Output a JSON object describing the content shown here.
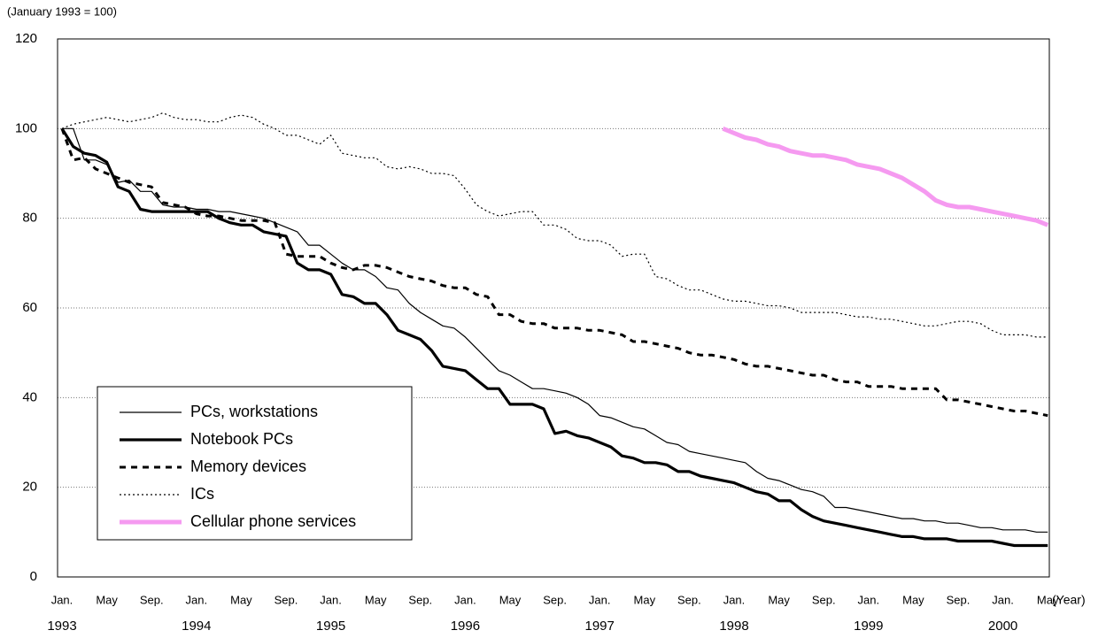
{
  "chart_data": {
    "type": "line",
    "y_axis_label": "(January 1993 = 100)",
    "x_axis_label": "(Year)",
    "categories": [
      "Jan.",
      null,
      null,
      null,
      "May",
      null,
      null,
      null,
      "Sep.",
      null,
      null,
      null,
      "Jan.",
      null,
      null,
      null,
      "May",
      null,
      null,
      null,
      "Sep.",
      null,
      null,
      null,
      "Jan.",
      null,
      null,
      null,
      "May",
      null,
      null,
      null,
      "Sep.",
      null,
      null,
      null,
      "Jan.",
      null,
      null,
      null,
      "May",
      null,
      null,
      null,
      "Sep.",
      null,
      null,
      null,
      "Jan.",
      null,
      null,
      null,
      "May",
      null,
      null,
      null,
      "Sep.",
      null,
      null,
      null,
      "Jan.",
      null,
      null,
      null,
      "May",
      null,
      null,
      null,
      "Sep.",
      null,
      null,
      null,
      "Jan.",
      null,
      null,
      null,
      "May",
      null,
      null,
      null,
      "Sep.",
      null,
      null,
      null,
      "Jan.",
      null,
      null,
      null,
      "May"
    ],
    "category_years": [
      "1993",
      null,
      null,
      null,
      null,
      null,
      null,
      null,
      null,
      null,
      null,
      null,
      "1994",
      null,
      null,
      null,
      null,
      null,
      null,
      null,
      null,
      null,
      null,
      null,
      "1995",
      null,
      null,
      null,
      null,
      null,
      null,
      null,
      null,
      null,
      null,
      null,
      "1996",
      null,
      null,
      null,
      null,
      null,
      null,
      null,
      null,
      null,
      null,
      null,
      "1997",
      null,
      null,
      null,
      null,
      null,
      null,
      null,
      null,
      null,
      null,
      null,
      "1998",
      null,
      null,
      null,
      null,
      null,
      null,
      null,
      null,
      null,
      null,
      null,
      "1999",
      null,
      null,
      null,
      null,
      null,
      null,
      null,
      null,
      null,
      null,
      null,
      "2000",
      null,
      null,
      null,
      null
    ],
    "ylim": [
      0,
      120
    ],
    "yticks": [
      0,
      20,
      40,
      60,
      80,
      100,
      120
    ],
    "grid": true,
    "legend": "lower left",
    "series": [
      {
        "name": "PCs, workstations",
        "color": "#000000",
        "style": "thin",
        "values": [
          100,
          100,
          93,
          93,
          92,
          88,
          88.5,
          86,
          86,
          83,
          82.5,
          82.5,
          82,
          82,
          81.5,
          81.5,
          81,
          80.5,
          80,
          79,
          78,
          77,
          74,
          74,
          72,
          70,
          68.5,
          68.5,
          67,
          64.5,
          64,
          61,
          59,
          57.5,
          56,
          55.5,
          53.5,
          51,
          48.5,
          46,
          45,
          43.5,
          42,
          42,
          41.5,
          41,
          40,
          38.5,
          36,
          35.5,
          34.5,
          33.5,
          33,
          31.5,
          30,
          29.5,
          28,
          27.5,
          27,
          26.5,
          26,
          25.5,
          23.5,
          22,
          21.5,
          20.5,
          19.5,
          19,
          18,
          15.5,
          15.5,
          15,
          14.5,
          14,
          13.5,
          13,
          13,
          12.5,
          12.5,
          12,
          12,
          11.5,
          11,
          11,
          10.5,
          10.5,
          10.5,
          10,
          10
        ]
      },
      {
        "name": "Notebook PCs",
        "color": "#000000",
        "style": "thick",
        "values": [
          100,
          96,
          94.5,
          94,
          92.5,
          87,
          86,
          82,
          81.5,
          81.5,
          81.5,
          81.5,
          81.5,
          81.5,
          80,
          79,
          78.5,
          78.5,
          77,
          76.5,
          76,
          70,
          68.5,
          68.5,
          67.5,
          63,
          62.5,
          61,
          61,
          58.5,
          55,
          54,
          53,
          50.5,
          47,
          46.5,
          46,
          44,
          42,
          42,
          38.5,
          38.5,
          38.5,
          37.5,
          32,
          32.5,
          31.5,
          31,
          30,
          29,
          27,
          26.5,
          25.5,
          25.5,
          25,
          23.5,
          23.5,
          22.5,
          22,
          21.5,
          21,
          20,
          19,
          18.5,
          17,
          17,
          15,
          13.5,
          12.5,
          12,
          11.5,
          11,
          10.5,
          10,
          9.5,
          9,
          9,
          8.5,
          8.5,
          8.5,
          8,
          8,
          8,
          8,
          7.5,
          7,
          7,
          7,
          7
        ]
      },
      {
        "name": "Memory devices",
        "color": "#000000",
        "style": "dashed",
        "values": [
          100,
          93,
          93.5,
          91,
          90,
          89,
          88,
          87.5,
          87,
          83.5,
          83,
          82.5,
          81,
          80.5,
          80.5,
          80,
          79.5,
          79.5,
          79.5,
          79,
          72,
          71.5,
          71.5,
          71.5,
          70,
          69,
          68.5,
          69.5,
          69.5,
          69,
          68,
          67,
          66.5,
          66,
          65,
          64.5,
          64.5,
          63,
          62.5,
          58.5,
          58.5,
          57,
          56.5,
          56.5,
          55.5,
          55.5,
          55.5,
          55,
          55,
          54.5,
          54,
          52.5,
          52.5,
          52,
          51.5,
          51,
          50,
          49.5,
          49.5,
          49,
          48.5,
          47.5,
          47,
          47,
          46.5,
          46,
          45.5,
          45,
          45,
          44,
          43.5,
          43.5,
          42.5,
          42.5,
          42.5,
          42,
          42,
          42,
          42,
          39.5,
          39.5,
          39,
          38.5,
          38,
          37.5,
          37,
          37,
          36.5,
          36
        ]
      },
      {
        "name": "ICs",
        "color": "#000000",
        "style": "dotted",
        "values": [
          100,
          101,
          101.5,
          102,
          102.5,
          102,
          101.5,
          102,
          102.5,
          103.5,
          102.5,
          102,
          102,
          101.5,
          101.5,
          102.5,
          103,
          102.5,
          101,
          100,
          98.5,
          98.5,
          97.5,
          96.5,
          98.5,
          94.5,
          94,
          93.5,
          93.5,
          91.5,
          91,
          91.5,
          91,
          90,
          90,
          89.5,
          86.5,
          83,
          81.5,
          80.5,
          81,
          81.5,
          81.5,
          78.5,
          78.5,
          77.5,
          75.5,
          75,
          75,
          74,
          71.5,
          72,
          72,
          67,
          66.5,
          65,
          64,
          64,
          63,
          62,
          61.5,
          61.5,
          61,
          60.5,
          60.5,
          60,
          59,
          59,
          59,
          59,
          58.5,
          58,
          58,
          57.5,
          57.5,
          57,
          56.5,
          56,
          56,
          56.5,
          57,
          57,
          56.5,
          55,
          54,
          54,
          54,
          53.5,
          53.5
        ]
      },
      {
        "name": "Cellular phone services",
        "color": "#f59af0",
        "style": "thick",
        "values": [
          null,
          null,
          null,
          null,
          null,
          null,
          null,
          null,
          null,
          null,
          null,
          null,
          null,
          null,
          null,
          null,
          null,
          null,
          null,
          null,
          null,
          null,
          null,
          null,
          null,
          null,
          null,
          null,
          null,
          null,
          null,
          null,
          null,
          null,
          null,
          null,
          null,
          null,
          null,
          null,
          null,
          null,
          null,
          null,
          null,
          null,
          null,
          null,
          null,
          null,
          null,
          null,
          null,
          null,
          null,
          null,
          null,
          null,
          null,
          100,
          99,
          98,
          97.5,
          96.5,
          96,
          95,
          94.5,
          94,
          94,
          93.5,
          93,
          92,
          91.5,
          91,
          90,
          89,
          87.5,
          86,
          84,
          83,
          82.5,
          82.5,
          82,
          81.5,
          81,
          80.5,
          80,
          79.5,
          78.5
        ]
      }
    ]
  }
}
